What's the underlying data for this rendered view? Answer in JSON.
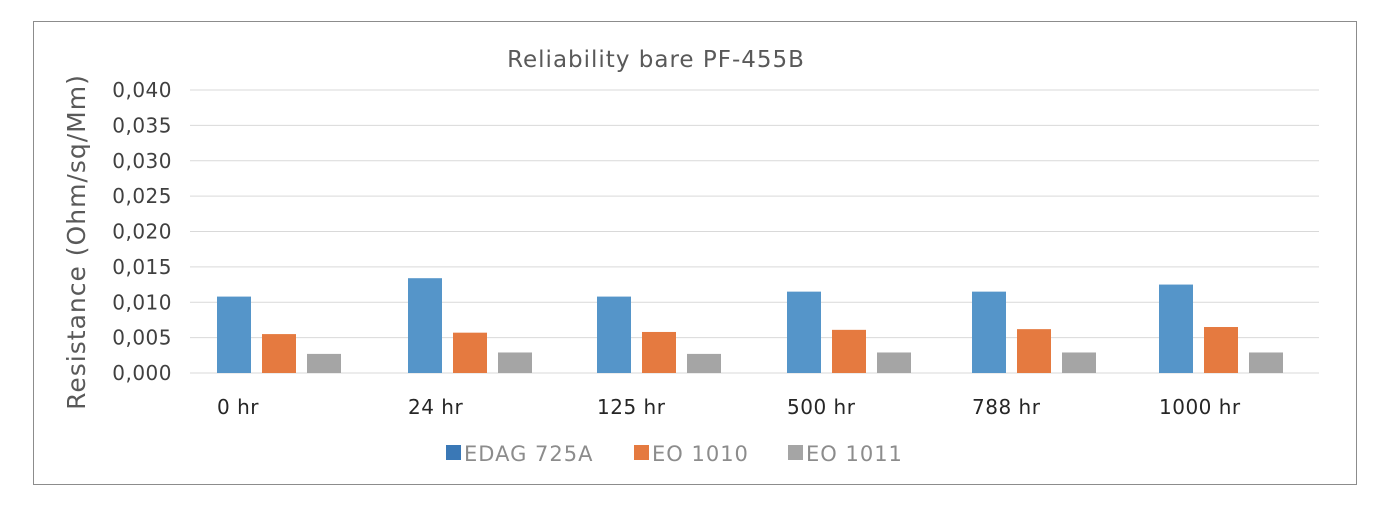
{
  "chart_data": {
    "type": "bar",
    "title": "Reliability bare PF-455B",
    "xlabel": "",
    "ylabel": "Resistance (Ohm/sq/Mm)",
    "categories": [
      "0  hr",
      "24 hr",
      "125 hr",
      "500 hr",
      "788 hr",
      "1000 hr"
    ],
    "ylim": [
      0,
      0.04
    ],
    "yticks": [
      "0,000",
      "0,005",
      "0,010",
      "0,015",
      "0,020",
      "0,025",
      "0,030",
      "0,035",
      "0,040"
    ],
    "grid": true,
    "legend_position": "bottom",
    "series": [
      {
        "name": "EDAG 725A",
        "color": "#5595c9",
        "legend_color": "#3a78b6",
        "values": [
          0.0108,
          0.0134,
          0.0108,
          0.0115,
          0.0115,
          0.0125
        ]
      },
      {
        "name": "EO 1010",
        "color": "#e57a40",
        "values": [
          0.0055,
          0.0057,
          0.0058,
          0.0061,
          0.0062,
          0.0065
        ]
      },
      {
        "name": "EO 1011",
        "color": "#a5a5a5",
        "values": [
          0.0027,
          0.0029,
          0.0027,
          0.0029,
          0.0029,
          0.0029
        ]
      }
    ]
  }
}
